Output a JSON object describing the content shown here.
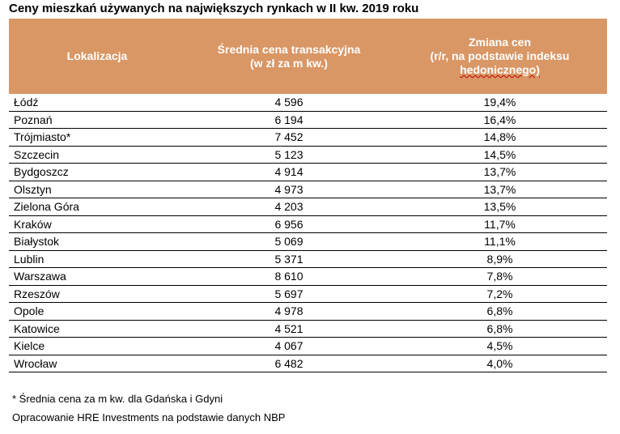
{
  "title": "Ceny mieszkań używanych na największych rynkach w II kw. 2019 roku",
  "header": {
    "col1": "Lokalizacja",
    "col2_line1": "Średnia cena transakcyjna",
    "col2_line2": "(w zł za m kw.)",
    "col3_line1": "Zmiana cen",
    "col3_line2": "(r/r, na podstawie indeksu",
    "col3_line3": "hedonicznego)"
  },
  "rows": [
    {
      "city": "Łódź",
      "price": "4 596",
      "change": "19,4%"
    },
    {
      "city": "Poznań",
      "price": "6 194",
      "change": "16,4%"
    },
    {
      "city": "Trójmiasto*",
      "price": "7 452",
      "change": "14,8%"
    },
    {
      "city": "Szczecin",
      "price": "5 123",
      "change": "14,5%"
    },
    {
      "city": "Bydgoszcz",
      "price": "4 914",
      "change": "13,7%"
    },
    {
      "city": "Olsztyn",
      "price": "4 973",
      "change": "13,7%"
    },
    {
      "city": "Zielona Góra",
      "price": "4 203",
      "change": "13,5%"
    },
    {
      "city": "Kraków",
      "price": "6 956",
      "change": "11,7%"
    },
    {
      "city": "Białystok",
      "price": "5 069",
      "change": "11,1%"
    },
    {
      "city": "Lublin",
      "price": "5 371",
      "change": "8,9%"
    },
    {
      "city": "Warszawa",
      "price": "8 610",
      "change": "7,8%"
    },
    {
      "city": "Rzeszów",
      "price": "5 697",
      "change": "7,2%"
    },
    {
      "city": "Opole",
      "price": "4 978",
      "change": "6,8%"
    },
    {
      "city": "Katowice",
      "price": "4 521",
      "change": "6,8%"
    },
    {
      "city": "Kielce",
      "price": "4 067",
      "change": "4,5%"
    },
    {
      "city": "Wrocław",
      "price": "6 482",
      "change": "4,0%"
    }
  ],
  "footnote": "* Średnia cena za m kw. dla Gdańska i Gdyni",
  "source": "Opracowanie HRE Investments na podstawie danych NBP",
  "colors": {
    "header_bg": "#d99766",
    "header_text": "#ffffff"
  }
}
